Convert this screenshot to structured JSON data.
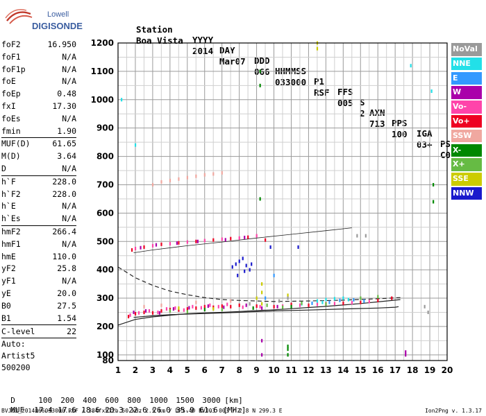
{
  "logo": {
    "line1": "Lowell",
    "line2": "DIGISONDE"
  },
  "header": {
    "labels": [
      "Station",
      "YYYY",
      "DAY",
      "DDD",
      "HHMMSS",
      "P1",
      "FFS",
      "S",
      "AXN",
      "PPS",
      "IGA",
      "PS"
    ],
    "values": [
      "Boa Vista",
      "2014",
      "Mar07",
      "066",
      "033000",
      "RSF",
      "005",
      "2",
      "713",
      "100",
      "03+",
      "C0"
    ]
  },
  "params": {
    "group1": [
      {
        "label": "foF2",
        "value": "16.950"
      },
      {
        "label": "foF1",
        "value": "N/A"
      },
      {
        "label": "foF1p",
        "value": "N/A"
      },
      {
        "label": "foE",
        "value": "N/A"
      },
      {
        "label": "foEp",
        "value": "0.48"
      },
      {
        "label": "fxI",
        "value": "17.30"
      },
      {
        "label": "foEs",
        "value": "N/A"
      },
      {
        "label": "fmin",
        "value": "1.90"
      }
    ],
    "group2": [
      {
        "label": "MUF(D)",
        "value": "61.65"
      },
      {
        "label": "M(D)",
        "value": "3.64"
      },
      {
        "label": "D",
        "value": "N/A"
      }
    ],
    "group3": [
      {
        "label": "h`F",
        "value": "228.0"
      },
      {
        "label": "h`F2",
        "value": "228.0"
      },
      {
        "label": "h`E",
        "value": "N/A"
      },
      {
        "label": "h`Es",
        "value": "N/A"
      }
    ],
    "group4": [
      {
        "label": "hmF2",
        "value": "266.4"
      },
      {
        "label": "hmF1",
        "value": "N/A"
      },
      {
        "label": "hmE",
        "value": "110.0"
      },
      {
        "label": "yF2",
        "value": "25.8"
      },
      {
        "label": "yF1",
        "value": "N/A"
      },
      {
        "label": "yE",
        "value": "20.0"
      },
      {
        "label": "B0",
        "value": "27.5"
      },
      {
        "label": "B1",
        "value": "1.54"
      }
    ],
    "clevel": {
      "label": "C-level",
      "value": "22"
    },
    "autoscale": [
      "Auto:",
      "Artist5",
      "500200"
    ]
  },
  "legend": [
    {
      "label": "NoVal",
      "color": "#9a9a9a"
    },
    {
      "label": "NNE",
      "color": "#22e0e8"
    },
    {
      "label": "E",
      "color": "#3399ff"
    },
    {
      "label": "W",
      "color": "#aa00aa"
    },
    {
      "label": "Vo-",
      "color": "#ff44aa"
    },
    {
      "label": "Vo+",
      "color": "#ee0022"
    },
    {
      "label": "SSW",
      "color": "#f0a8a0"
    },
    {
      "label": "X-",
      "color": "#008800"
    },
    {
      "label": "X+",
      "color": "#66bb44"
    },
    {
      "label": "SSE",
      "color": "#cccc00"
    },
    {
      "label": "NNW",
      "color": "#1a1acc"
    }
  ],
  "footer": {
    "distance_label": "D",
    "distances": [
      "100",
      "200",
      "400",
      "600",
      "800",
      "1000",
      "1500",
      "3000"
    ],
    "distance_unit": "[km]",
    "muf_label": "MUF",
    "mufs": [
      "17.4",
      "17.6",
      "18.6",
      "20.3",
      "22.6",
      "26.0",
      "35.9",
      "61.6"
    ],
    "muf_unit": "[MHz]",
    "file_info": "BVJ03_2014066033000.RSF / 384fx512h 50 kHz 2.5 km / DPS-4D BVJ03 003 / 2.8 N 299.3 E",
    "version": "Ion2Png v. 1.3.17"
  },
  "chart_data": {
    "type": "scatter",
    "title": "",
    "xlabel": "",
    "ylabel": "",
    "xlim": [
      1,
      20
    ],
    "ylim": [
      80,
      1200
    ],
    "xticks": [
      1,
      2,
      3,
      4,
      5,
      6,
      7,
      8,
      9,
      10,
      11,
      12,
      13,
      14,
      15,
      16,
      17,
      18,
      19,
      20
    ],
    "yticks": [
      80,
      100,
      200,
      300,
      400,
      500,
      600,
      700,
      800,
      900,
      1000,
      1100,
      1200
    ],
    "grid": true,
    "legend_position": "right",
    "series": [
      {
        "name": "Vo+",
        "color": "#ee0022",
        "points": [
          [
            1.6,
            235
          ],
          [
            2.0,
            245
          ],
          [
            2.5,
            250
          ],
          [
            3.0,
            248
          ],
          [
            3.5,
            255
          ],
          [
            4.0,
            260
          ],
          [
            4.5,
            258
          ],
          [
            5.0,
            262
          ],
          [
            5.5,
            265
          ],
          [
            6.0,
            270
          ],
          [
            6.5,
            268
          ],
          [
            7.0,
            272
          ],
          [
            7.5,
            270
          ],
          [
            8.0,
            275
          ],
          [
            9.0,
            272
          ],
          [
            10.0,
            270
          ],
          [
            11.0,
            278
          ],
          [
            12.0,
            275
          ],
          [
            13.0,
            280
          ],
          [
            14.0,
            282
          ],
          [
            15.0,
            285
          ],
          [
            16.0,
            292
          ],
          [
            16.8,
            300
          ],
          [
            1.8,
            470
          ],
          [
            2.5,
            480
          ],
          [
            3.5,
            490
          ],
          [
            4.5,
            495
          ],
          [
            5.5,
            500
          ],
          [
            6.5,
            505
          ],
          [
            7.5,
            510
          ],
          [
            8.5,
            515
          ],
          [
            9.5,
            505
          ]
        ]
      },
      {
        "name": "Vo-",
        "color": "#ff44aa",
        "points": [
          [
            1.7,
            240
          ],
          [
            2.2,
            248
          ],
          [
            2.8,
            255
          ],
          [
            3.3,
            250
          ],
          [
            3.8,
            262
          ],
          [
            4.3,
            265
          ],
          [
            4.8,
            258
          ],
          [
            5.3,
            270
          ],
          [
            5.8,
            266
          ],
          [
            6.3,
            275
          ],
          [
            6.8,
            270
          ],
          [
            7.3,
            278
          ],
          [
            8.2,
            268
          ],
          [
            9.2,
            270
          ],
          [
            10.5,
            272
          ],
          [
            11.5,
            275
          ],
          [
            12.5,
            278
          ],
          [
            13.5,
            281
          ],
          [
            14.5,
            284
          ],
          [
            15.5,
            288
          ],
          [
            2.0,
            475
          ],
          [
            3.0,
            485
          ],
          [
            4.0,
            492
          ],
          [
            5.0,
            498
          ],
          [
            6.0,
            503
          ],
          [
            7.0,
            508
          ],
          [
            8.0,
            512
          ],
          [
            9.0,
            520
          ]
        ]
      },
      {
        "name": "W",
        "color": "#aa00aa",
        "points": [
          [
            1.9,
            250
          ],
          [
            2.6,
            255
          ],
          [
            3.4,
            248
          ],
          [
            4.2,
            262
          ],
          [
            5.1,
            266
          ],
          [
            6.2,
            272
          ],
          [
            7.1,
            268
          ],
          [
            8.4,
            275
          ],
          [
            9.3,
            265
          ],
          [
            10.2,
            270
          ],
          [
            2.3,
            478
          ],
          [
            3.2,
            488
          ],
          [
            4.4,
            494
          ],
          [
            5.6,
            500
          ],
          [
            7.2,
            506
          ],
          [
            8.3,
            514
          ],
          [
            9.3,
            150
          ],
          [
            9.3,
            100
          ],
          [
            17.6,
            100
          ],
          [
            17.6,
            110
          ]
        ]
      },
      {
        "name": "NNE",
        "color": "#22e0e8",
        "points": [
          [
            12.5,
            290
          ],
          [
            13.0,
            295
          ],
          [
            13.5,
            298
          ],
          [
            14.0,
            300
          ],
          [
            14.3,
            295
          ],
          [
            12.8,
            285
          ],
          [
            11.6,
            280
          ],
          [
            1.2,
            1000
          ],
          [
            17.9,
            1120
          ],
          [
            19.1,
            1030
          ],
          [
            2.0,
            840
          ]
        ]
      },
      {
        "name": "E",
        "color": "#3399ff",
        "points": [
          [
            13.2,
            285
          ],
          [
            13.8,
            292
          ],
          [
            14.6,
            294
          ],
          [
            15.2,
            290
          ],
          [
            12.2,
            282
          ],
          [
            9.5,
            300
          ],
          [
            10.0,
            380
          ]
        ]
      },
      {
        "name": "SSW",
        "color": "#f0a8a0",
        "points": [
          [
            3.0,
            700
          ],
          [
            3.5,
            710
          ],
          [
            4.0,
            715
          ],
          [
            4.5,
            720
          ],
          [
            5.0,
            725
          ],
          [
            5.5,
            730
          ],
          [
            6.0,
            735
          ],
          [
            6.5,
            738
          ],
          [
            7.0,
            742
          ],
          [
            2.5,
            270
          ],
          [
            3.5,
            275
          ],
          [
            5.5,
            285
          ],
          [
            7.5,
            290
          ]
        ]
      },
      {
        "name": "X-",
        "color": "#008800",
        "points": [
          [
            9.2,
            1100
          ],
          [
            9.2,
            1050
          ],
          [
            9.2,
            650
          ],
          [
            10.8,
            120
          ],
          [
            10.8,
            100
          ],
          [
            10.8,
            130
          ],
          [
            6.0,
            260
          ],
          [
            8.8,
            265
          ],
          [
            11.0,
            270
          ],
          [
            19.2,
            700
          ],
          [
            19.2,
            640
          ]
        ]
      },
      {
        "name": "X+",
        "color": "#66bb44",
        "points": [
          [
            4.0,
            255
          ],
          [
            5.0,
            252
          ],
          [
            7.0,
            260
          ],
          [
            9.6,
            275
          ],
          [
            10.5,
            268
          ],
          [
            11.6,
            282
          ],
          [
            13.0,
            279
          ],
          [
            15.0,
            300
          ],
          [
            16.0,
            305
          ]
        ]
      },
      {
        "name": "SSE",
        "color": "#cccc00",
        "points": [
          [
            9.3,
            320
          ],
          [
            9.3,
            350
          ],
          [
            9.3,
            280
          ],
          [
            12.5,
            1200
          ],
          [
            12.5,
            1180
          ],
          [
            4.5,
            265
          ],
          [
            6.5,
            262
          ],
          [
            9.0,
            300
          ],
          [
            10.8,
            310
          ]
        ]
      },
      {
        "name": "NNW",
        "color": "#1a1acc",
        "points": [
          [
            7.6,
            410
          ],
          [
            7.8,
            420
          ],
          [
            8.0,
            430
          ],
          [
            8.2,
            440
          ],
          [
            8.4,
            415
          ],
          [
            8.6,
            400
          ],
          [
            7.9,
            380
          ],
          [
            8.3,
            395
          ],
          [
            8.7,
            420
          ],
          [
            11.4,
            480
          ],
          [
            9.8,
            480
          ]
        ]
      },
      {
        "name": "NoVal",
        "color": "#9a9a9a",
        "points": [
          [
            10.3,
            290
          ],
          [
            10.8,
            300
          ],
          [
            8.6,
            280
          ],
          [
            14.8,
            520
          ],
          [
            15.3,
            520
          ],
          [
            18.7,
            270
          ],
          [
            18.9,
            250
          ]
        ]
      }
    ],
    "curves": [
      {
        "style": "solid",
        "points": [
          [
            1,
            205
          ],
          [
            2,
            225
          ],
          [
            3,
            234
          ],
          [
            4,
            240
          ],
          [
            5,
            245
          ],
          [
            6,
            248
          ],
          [
            7,
            250
          ],
          [
            8,
            253
          ],
          [
            9,
            256
          ],
          [
            10,
            259
          ],
          [
            11,
            263
          ],
          [
            12,
            267
          ],
          [
            13,
            271
          ],
          [
            14,
            276
          ],
          [
            15,
            281
          ],
          [
            16,
            287
          ],
          [
            17,
            293
          ],
          [
            17.3,
            295
          ]
        ]
      },
      {
        "style": "solid",
        "points": [
          [
            1.9,
            232
          ],
          [
            3,
            238
          ],
          [
            4,
            242
          ],
          [
            6,
            246
          ],
          [
            8,
            250
          ],
          [
            10,
            255
          ],
          [
            12,
            258
          ],
          [
            14,
            262
          ],
          [
            16,
            265
          ],
          [
            17,
            268
          ],
          [
            17.2,
            270
          ]
        ]
      },
      {
        "style": "dashed",
        "points": [
          [
            1,
            410
          ],
          [
            2,
            372
          ],
          [
            3,
            345
          ],
          [
            4,
            325
          ],
          [
            5,
            312
          ],
          [
            6,
            302
          ],
          [
            7,
            295
          ],
          [
            8,
            292
          ],
          [
            9,
            290
          ],
          [
            10,
            288
          ],
          [
            12,
            290
          ],
          [
            14,
            293
          ],
          [
            16,
            298
          ],
          [
            17.3,
            302
          ]
        ]
      },
      {
        "style": "thin",
        "points": [
          [
            1.9,
            460
          ],
          [
            3,
            470
          ],
          [
            5,
            485
          ],
          [
            7,
            498
          ],
          [
            9,
            512
          ],
          [
            11,
            525
          ],
          [
            13,
            538
          ],
          [
            14.5,
            548
          ]
        ]
      }
    ]
  }
}
